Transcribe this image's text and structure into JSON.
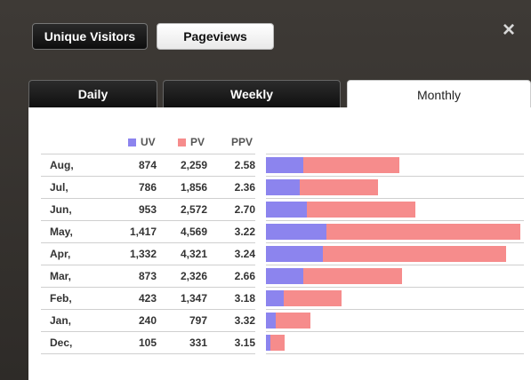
{
  "buttons": {
    "unique_visitors": "Unique Visitors",
    "pageviews": "Pageviews"
  },
  "close_icon": "×",
  "tabs": [
    {
      "label": "Daily"
    },
    {
      "label": "Weekly"
    },
    {
      "label": "Monthly"
    }
  ],
  "legend": {
    "uv": "UV",
    "pv": "PV",
    "ppv": "PPV"
  },
  "colors": {
    "uv": "#8c84ee",
    "pv": "#f68c8c"
  },
  "rows": [
    {
      "month": "Aug,",
      "uv": "874",
      "pv": "2,259",
      "ppv": "2.58",
      "uv_val": 874,
      "pv_val": 2259
    },
    {
      "month": "Jul,",
      "uv": "786",
      "pv": "1,856",
      "ppv": "2.36",
      "uv_val": 786,
      "pv_val": 1856
    },
    {
      "month": "Jun,",
      "uv": "953",
      "pv": "2,572",
      "ppv": "2.70",
      "uv_val": 953,
      "pv_val": 2572
    },
    {
      "month": "May,",
      "uv": "1,417",
      "pv": "4,569",
      "ppv": "3.22",
      "uv_val": 1417,
      "pv_val": 4569
    },
    {
      "month": "Apr,",
      "uv": "1,332",
      "pv": "4,321",
      "ppv": "3.24",
      "uv_val": 1332,
      "pv_val": 4321
    },
    {
      "month": "Mar,",
      "uv": "873",
      "pv": "2,326",
      "ppv": "2.66",
      "uv_val": 873,
      "pv_val": 2326
    },
    {
      "month": "Feb,",
      "uv": "423",
      "pv": "1,347",
      "ppv": "3.18",
      "uv_val": 423,
      "pv_val": 1347
    },
    {
      "month": "Jan,",
      "uv": "240",
      "pv": "797",
      "ppv": "3.32",
      "uv_val": 240,
      "pv_val": 797
    },
    {
      "month": "Dec,",
      "uv": "105",
      "pv": "331",
      "ppv": "3.15",
      "uv_val": 105,
      "pv_val": 331
    }
  ]
}
